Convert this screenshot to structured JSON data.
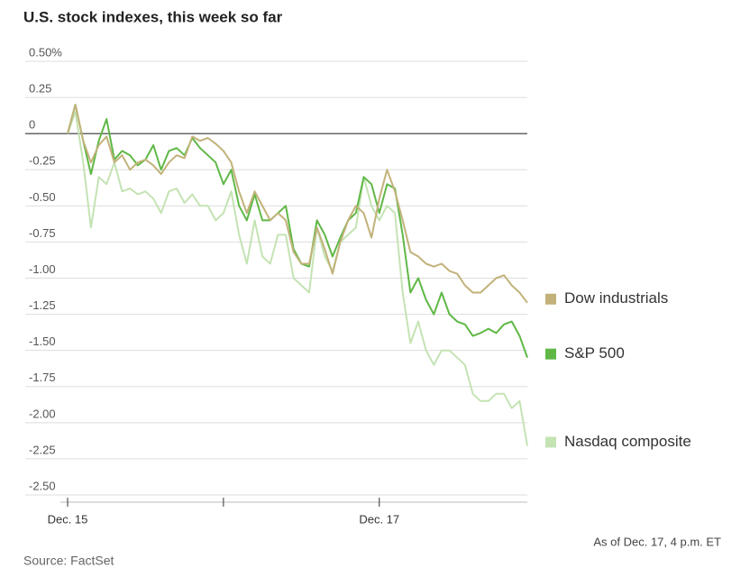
{
  "chart_data": {
    "type": "line",
    "title": "U.S. stock indexes, this week so far",
    "source": "Source: FactSet",
    "note": "As of Dec. 17, 4 p.m. ET",
    "x": [
      0,
      2,
      4,
      6,
      8,
      10,
      12,
      14,
      16,
      18,
      20,
      22,
      24,
      26,
      28,
      30,
      32,
      34,
      36,
      38,
      40,
      42,
      44,
      46,
      48,
      50,
      52,
      54,
      56,
      58,
      60,
      62,
      64,
      66,
      68,
      70,
      72,
      74,
      76,
      78,
      80,
      82,
      84,
      86,
      88,
      90,
      92,
      94,
      96,
      98,
      100,
      102,
      104,
      106,
      108,
      110,
      112,
      114,
      116,
      118
    ],
    "xlim": [
      0,
      118
    ],
    "xticks": [
      {
        "value": 0,
        "label": "Dec. 15"
      },
      {
        "value": 40,
        "label": null
      },
      {
        "value": 80,
        "label": "Dec. 17"
      }
    ],
    "ylim": [
      -2.5,
      0.5
    ],
    "yticks": [
      {
        "value": 0.5,
        "label": "0.50%"
      },
      0.25,
      0,
      -0.25,
      {
        "value": -0.5,
        "label": "-0.50"
      },
      -0.75,
      {
        "value": -1,
        "label": "-1.00"
      },
      -1.25,
      {
        "value": -1.5,
        "label": "-1.50"
      },
      -1.75,
      {
        "value": -2,
        "label": "-2.00"
      },
      -2.25,
      {
        "value": -2.5,
        "label": "-2.50"
      }
    ],
    "grid": true,
    "series": [
      {
        "name": "Dow industrials",
        "color": "#c2b27a",
        "values": [
          0,
          0.2,
          -0.05,
          -0.2,
          -0.08,
          -0.02,
          -0.2,
          -0.15,
          -0.25,
          -0.2,
          -0.18,
          -0.22,
          -0.28,
          -0.2,
          -0.15,
          -0.17,
          -0.02,
          -0.05,
          -0.03,
          -0.07,
          -0.12,
          -0.2,
          -0.4,
          -0.55,
          -0.4,
          -0.5,
          -0.6,
          -0.55,
          -0.6,
          -0.82,
          -0.9,
          -0.9,
          -0.65,
          -0.8,
          -0.97,
          -0.75,
          -0.6,
          -0.5,
          -0.55,
          -0.72,
          -0.45,
          -0.25,
          -0.4,
          -0.6,
          -0.82,
          -0.85,
          -0.9,
          -0.92,
          -0.9,
          -0.95,
          -0.97,
          -1.05,
          -1.1,
          -1.1,
          -1.05,
          -1.0,
          -0.98,
          -1.05,
          -1.1,
          -1.17
        ]
      },
      {
        "name": "S&P 500",
        "color": "#5fb846",
        "values": [
          0,
          0.2,
          -0.05,
          -0.28,
          -0.05,
          0.1,
          -0.18,
          -0.12,
          -0.15,
          -0.22,
          -0.18,
          -0.08,
          -0.25,
          -0.12,
          -0.1,
          -0.15,
          -0.03,
          -0.1,
          -0.15,
          -0.2,
          -0.35,
          -0.25,
          -0.5,
          -0.6,
          -0.42,
          -0.6,
          -0.6,
          -0.55,
          -0.5,
          -0.8,
          -0.9,
          -0.92,
          -0.6,
          -0.7,
          -0.85,
          -0.72,
          -0.6,
          -0.55,
          -0.3,
          -0.35,
          -0.55,
          -0.35,
          -0.38,
          -0.7,
          -1.1,
          -1.0,
          -1.15,
          -1.25,
          -1.1,
          -1.25,
          -1.3,
          -1.32,
          -1.4,
          -1.38,
          -1.35,
          -1.38,
          -1.32,
          -1.3,
          -1.4,
          -1.55
        ]
      },
      {
        "name": "Nasdaq composite",
        "color": "#c4e3b3",
        "values": [
          0,
          0.15,
          -0.2,
          -0.65,
          -0.3,
          -0.35,
          -0.2,
          -0.4,
          -0.38,
          -0.42,
          -0.4,
          -0.45,
          -0.55,
          -0.4,
          -0.38,
          -0.48,
          -0.42,
          -0.5,
          -0.5,
          -0.6,
          -0.55,
          -0.4,
          -0.7,
          -0.9,
          -0.6,
          -0.85,
          -0.9,
          -0.7,
          -0.7,
          -1.0,
          -1.05,
          -1.1,
          -0.65,
          -0.85,
          -0.95,
          -0.75,
          -0.7,
          -0.65,
          -0.3,
          -0.5,
          -0.6,
          -0.5,
          -0.55,
          -1.1,
          -1.45,
          -1.3,
          -1.5,
          -1.6,
          -1.5,
          -1.5,
          -1.55,
          -1.6,
          -1.8,
          -1.85,
          -1.85,
          -1.8,
          -1.8,
          -1.9,
          -1.85,
          -2.16
        ]
      }
    ]
  }
}
